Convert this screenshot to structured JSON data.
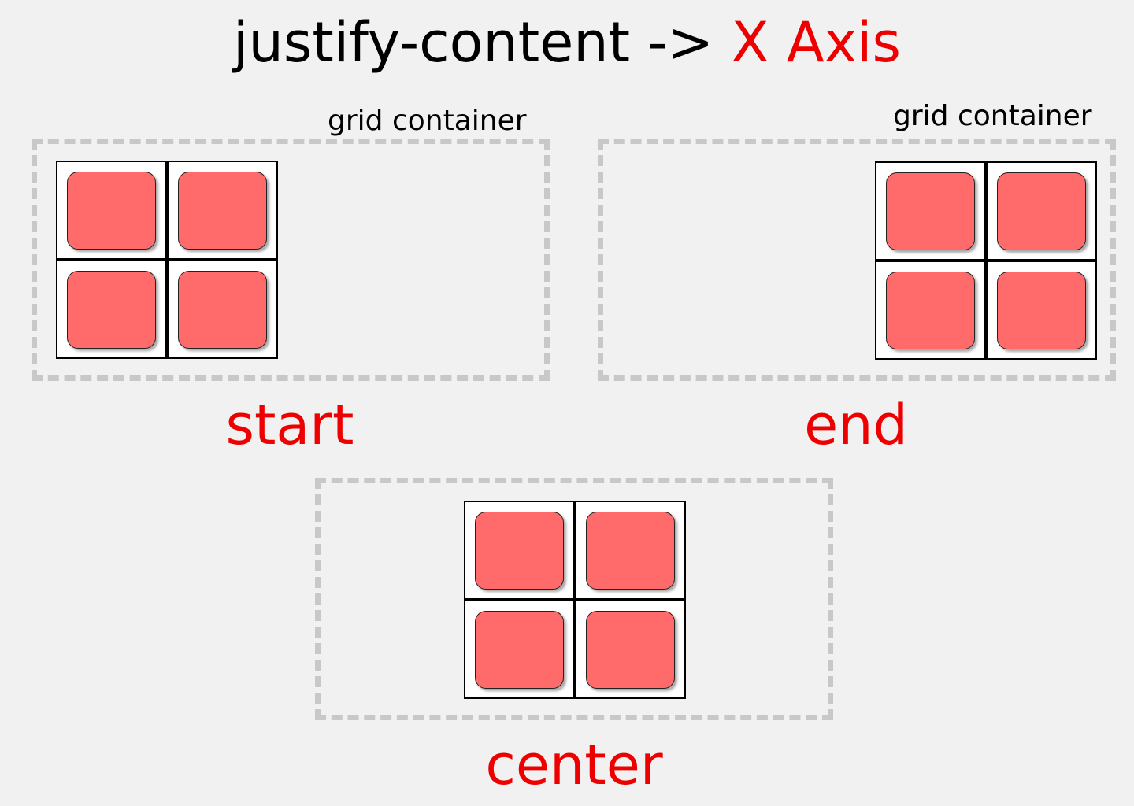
{
  "title": {
    "prefix": "justify-content ->",
    "accent": "X Axis"
  },
  "colors": {
    "accent": "#ee0000",
    "item_fill": "#ff6b6b",
    "container_border": "#c8c8c8",
    "background": "#f1f1f1"
  },
  "panels": {
    "start": {
      "container_label": "grid container",
      "mode_label": "start"
    },
    "end": {
      "container_label": "grid container",
      "mode_label": "end"
    },
    "center": {
      "mode_label": "center"
    }
  }
}
